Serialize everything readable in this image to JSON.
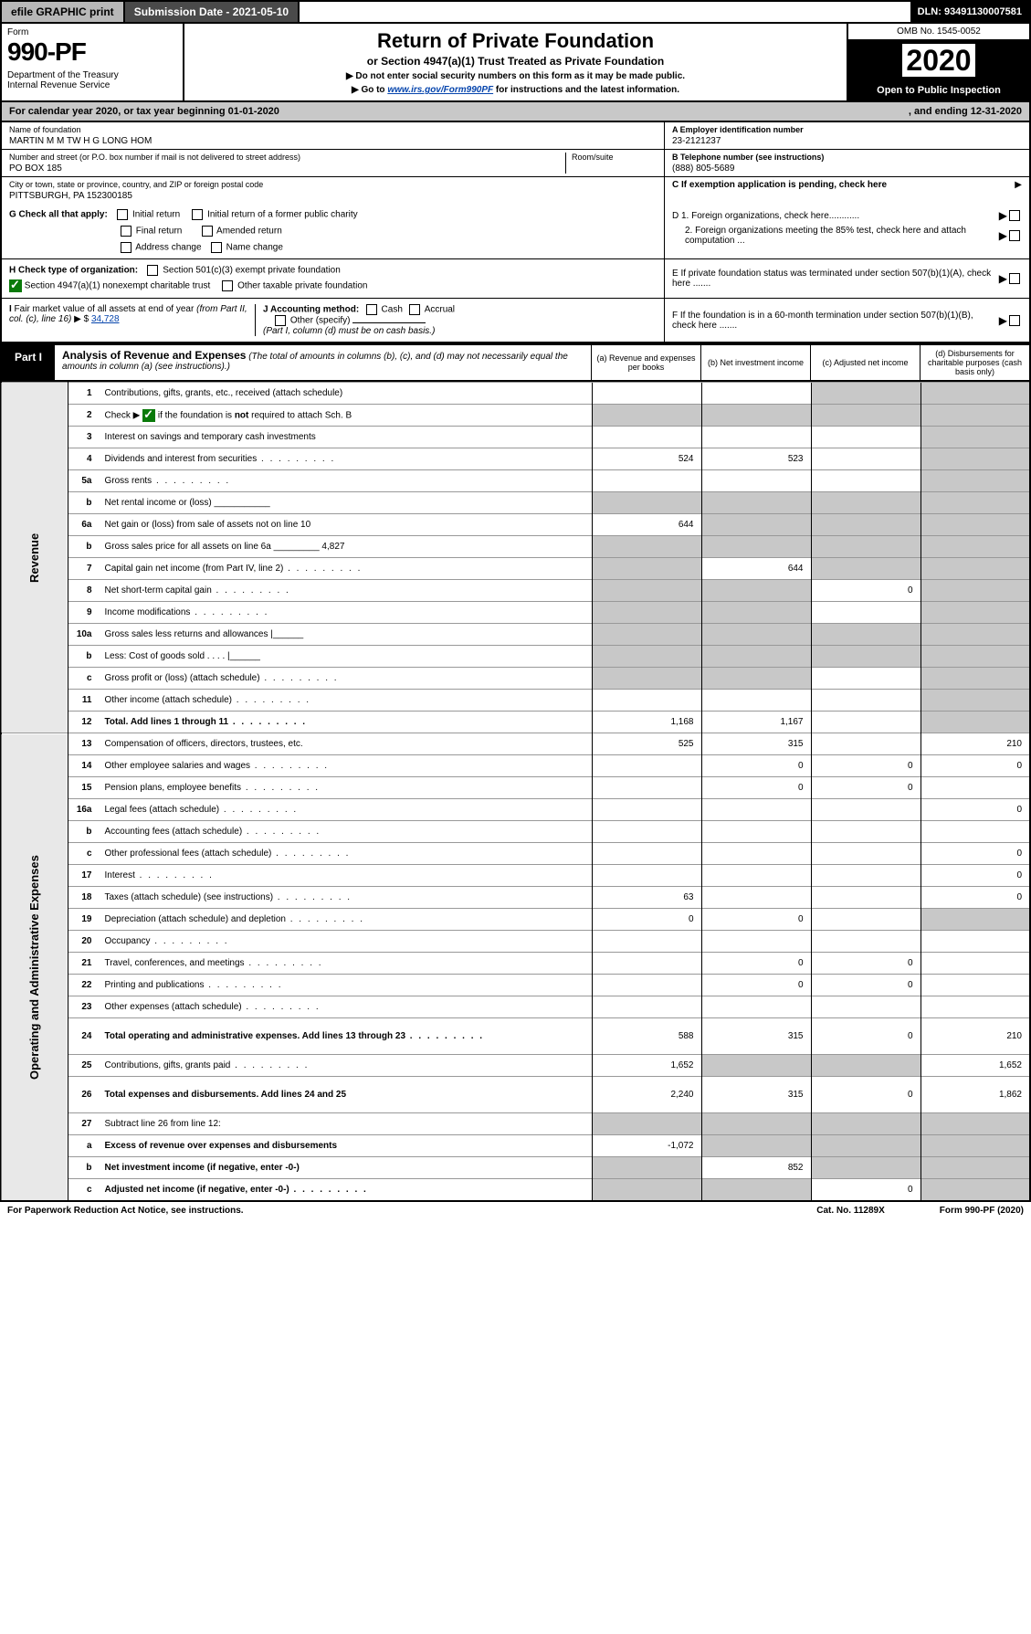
{
  "topbar": {
    "efile": "efile GRAPHIC print",
    "subdate": "Submission Date - 2021-05-10",
    "dln": "DLN: 93491130007581"
  },
  "header": {
    "form_label": "Form",
    "form_number": "990-PF",
    "dept": "Department of the Treasury\nInternal Revenue Service",
    "title": "Return of Private Foundation",
    "subtitle": "or Section 4947(a)(1) Trust Treated as Private Foundation",
    "hint1": "▶ Do not enter social security numbers on this form as it may be made public.",
    "hint2_pre": "▶ Go to ",
    "hint2_link": "www.irs.gov/Form990PF",
    "hint2_post": " for instructions and the latest information.",
    "omb": "OMB No. 1545-0052",
    "year": "2020",
    "open": "Open to Public Inspection"
  },
  "cal": {
    "left": "For calendar year 2020, or tax year beginning 01-01-2020",
    "right": ", and ending 12-31-2020"
  },
  "id": {
    "name_lbl": "Name of foundation",
    "name_val": "MARTIN M M TW H G LONG HOM",
    "addr_lbl": "Number and street (or P.O. box number if mail is not delivered to street address)",
    "addr_val": "PO BOX 185",
    "room_lbl": "Room/suite",
    "city_lbl": "City or town, state or province, country, and ZIP or foreign postal code",
    "city_val": "PITTSBURGH, PA  152300185",
    "ein_lbl": "A Employer identification number",
    "ein_val": "23-2121237",
    "tel_lbl": "B Telephone number (see instructions)",
    "tel_val": "(888) 805-5689",
    "c_lbl": "C If exemption application is pending, check here"
  },
  "checks": {
    "g_lbl": "G Check all that apply:",
    "g1": "Initial return",
    "g2": "Initial return of a former public charity",
    "g3": "Final return",
    "g4": "Amended return",
    "g5": "Address change",
    "g6": "Name change",
    "h_lbl": "H Check type of organization:",
    "h1": "Section 501(c)(3) exempt private foundation",
    "h2": "Section 4947(a)(1) nonexempt charitable trust",
    "h3": "Other taxable private foundation",
    "i_lbl": "I Fair market value of all assets at end of year (from Part II, col. (c), line 16) ▶ $",
    "i_val": "34,728",
    "j_lbl": "J Accounting method:",
    "j1": "Cash",
    "j2": "Accrual",
    "j3": "Other (specify)",
    "j_note": "(Part I, column (d) must be on cash basis.)",
    "d1": "D 1. Foreign organizations, check here............",
    "d2": "2. Foreign organizations meeting the 85% test, check here and attach computation ...",
    "e": "E If private foundation status was terminated under section 507(b)(1)(A), check here .......",
    "f": "F If the foundation is in a 60-month termination under section 507(b)(1)(B), check here ......."
  },
  "part1": {
    "label": "Part I",
    "title": "Analysis of Revenue and Expenses",
    "title_note": "(The total of amounts in columns (b), (c), and (d) may not necessarily equal the amounts in column (a) (see instructions).)",
    "col_a": "(a)   Revenue and expenses per books",
    "col_b": "(b)   Net investment income",
    "col_c": "(c)   Adjusted net income",
    "col_d": "(d)   Disbursements for charitable purposes (cash basis only)"
  },
  "side": {
    "rev": "Revenue",
    "exp": "Operating and Administrative Expenses"
  },
  "rows": [
    {
      "n": "1",
      "d": "Contributions, gifts, grants, etc., received (attach schedule)",
      "a": "",
      "b": "",
      "c": "s",
      "dcol": "s"
    },
    {
      "n": "2",
      "d": "Check ▶ CK if the foundation is not required to attach Sch. B",
      "a": "s",
      "b": "s",
      "c": "s",
      "dcol": "s",
      "bold": false,
      "nothtml": true
    },
    {
      "n": "3",
      "d": "Interest on savings and temporary cash investments",
      "a": "",
      "b": "",
      "c": "",
      "dcol": "s"
    },
    {
      "n": "4",
      "d": "Dividends and interest from securities",
      "a": "524",
      "b": "523",
      "c": "",
      "dcol": "s",
      "dots": true
    },
    {
      "n": "5a",
      "d": "Gross rents",
      "a": "",
      "b": "",
      "c": "",
      "dcol": "s",
      "dots": true
    },
    {
      "n": "b",
      "d": "Net rental income or (loss) ___________",
      "a": "s",
      "b": "s",
      "c": "s",
      "dcol": "s"
    },
    {
      "n": "6a",
      "d": "Net gain or (loss) from sale of assets not on line 10",
      "a": "644",
      "b": "s",
      "c": "s",
      "dcol": "s"
    },
    {
      "n": "b",
      "d": "Gross sales price for all assets on line 6a _________ 4,827",
      "a": "s",
      "b": "s",
      "c": "s",
      "dcol": "s"
    },
    {
      "n": "7",
      "d": "Capital gain net income (from Part IV, line 2)",
      "a": "s",
      "b": "644",
      "c": "s",
      "dcol": "s",
      "dots": true
    },
    {
      "n": "8",
      "d": "Net short-term capital gain",
      "a": "s",
      "b": "s",
      "c": "0",
      "dcol": "s",
      "dots": true
    },
    {
      "n": "9",
      "d": "Income modifications",
      "a": "s",
      "b": "s",
      "c": "",
      "dcol": "s",
      "dots": true
    },
    {
      "n": "10a",
      "d": "Gross sales less returns and allowances  |______",
      "a": "s",
      "b": "s",
      "c": "s",
      "dcol": "s"
    },
    {
      "n": "b",
      "d": "Less: Cost of goods sold      .  .  .  .   |______",
      "a": "s",
      "b": "s",
      "c": "s",
      "dcol": "s"
    },
    {
      "n": "c",
      "d": "Gross profit or (loss) (attach schedule)",
      "a": "s",
      "b": "s",
      "c": "",
      "dcol": "s",
      "dots": true
    },
    {
      "n": "11",
      "d": "Other income (attach schedule)",
      "a": "",
      "b": "",
      "c": "",
      "dcol": "s",
      "dots": true
    },
    {
      "n": "12",
      "d": "Total. Add lines 1 through 11",
      "a": "1,168",
      "b": "1,167",
      "c": "",
      "dcol": "s",
      "dots": true,
      "bold": true
    },
    {
      "n": "13",
      "d": "Compensation of officers, directors, trustees, etc.",
      "a": "525",
      "b": "315",
      "c": "",
      "dcol": "210"
    },
    {
      "n": "14",
      "d": "Other employee salaries and wages",
      "a": "",
      "b": "0",
      "c": "0",
      "dcol": "0",
      "dots": true
    },
    {
      "n": "15",
      "d": "Pension plans, employee benefits",
      "a": "",
      "b": "0",
      "c": "0",
      "dcol": "",
      "dots": true
    },
    {
      "n": "16a",
      "d": "Legal fees (attach schedule)",
      "a": "",
      "b": "",
      "c": "",
      "dcol": "0",
      "dots": true
    },
    {
      "n": "b",
      "d": "Accounting fees (attach schedule)",
      "a": "",
      "b": "",
      "c": "",
      "dcol": "",
      "dots": true
    },
    {
      "n": "c",
      "d": "Other professional fees (attach schedule)",
      "a": "",
      "b": "",
      "c": "",
      "dcol": "0",
      "dots": true
    },
    {
      "n": "17",
      "d": "Interest",
      "a": "",
      "b": "",
      "c": "",
      "dcol": "0",
      "dots": true
    },
    {
      "n": "18",
      "d": "Taxes (attach schedule) (see instructions)",
      "a": "63",
      "b": "",
      "c": "",
      "dcol": "0",
      "dots": true
    },
    {
      "n": "19",
      "d": "Depreciation (attach schedule) and depletion",
      "a": "0",
      "b": "0",
      "c": "",
      "dcol": "s",
      "dots": true
    },
    {
      "n": "20",
      "d": "Occupancy",
      "a": "",
      "b": "",
      "c": "",
      "dcol": "",
      "dots": true
    },
    {
      "n": "21",
      "d": "Travel, conferences, and meetings",
      "a": "",
      "b": "0",
      "c": "0",
      "dcol": "",
      "dots": true
    },
    {
      "n": "22",
      "d": "Printing and publications",
      "a": "",
      "b": "0",
      "c": "0",
      "dcol": "",
      "dots": true
    },
    {
      "n": "23",
      "d": "Other expenses (attach schedule)",
      "a": "",
      "b": "",
      "c": "",
      "dcol": "",
      "dots": true
    },
    {
      "n": "24",
      "d": "Total operating and administrative expenses. Add lines 13 through 23",
      "a": "588",
      "b": "315",
      "c": "0",
      "dcol": "210",
      "dots": true,
      "bold": true,
      "tall": true
    },
    {
      "n": "25",
      "d": "Contributions, gifts, grants paid",
      "a": "1,652",
      "b": "s",
      "c": "s",
      "dcol": "1,652",
      "dots": true
    },
    {
      "n": "26",
      "d": "Total expenses and disbursements. Add lines 24 and 25",
      "a": "2,240",
      "b": "315",
      "c": "0",
      "dcol": "1,862",
      "bold": true,
      "tall": true
    },
    {
      "n": "27",
      "d": "Subtract line 26 from line 12:",
      "a": "s",
      "b": "s",
      "c": "s",
      "dcol": "s"
    },
    {
      "n": "a",
      "d": "Excess of revenue over expenses and disbursements",
      "a": "-1,072",
      "b": "s",
      "c": "s",
      "dcol": "s",
      "bold": true
    },
    {
      "n": "b",
      "d": "Net investment income (if negative, enter -0-)",
      "a": "s",
      "b": "852",
      "c": "s",
      "dcol": "s",
      "bold": true
    },
    {
      "n": "c",
      "d": "Adjusted net income (if negative, enter -0-)",
      "a": "s",
      "b": "s",
      "c": "0",
      "dcol": "s",
      "bold": true,
      "dots": true
    }
  ],
  "foot": {
    "left": "For Paperwork Reduction Act Notice, see instructions.",
    "mid": "Cat. No. 11289X",
    "right": "Form 990-PF (2020)"
  },
  "style": {
    "shade_color": "#c8c8c8",
    "border_color": "#000000",
    "link_color": "#0645ad",
    "check_green": "#0a7a0a"
  }
}
